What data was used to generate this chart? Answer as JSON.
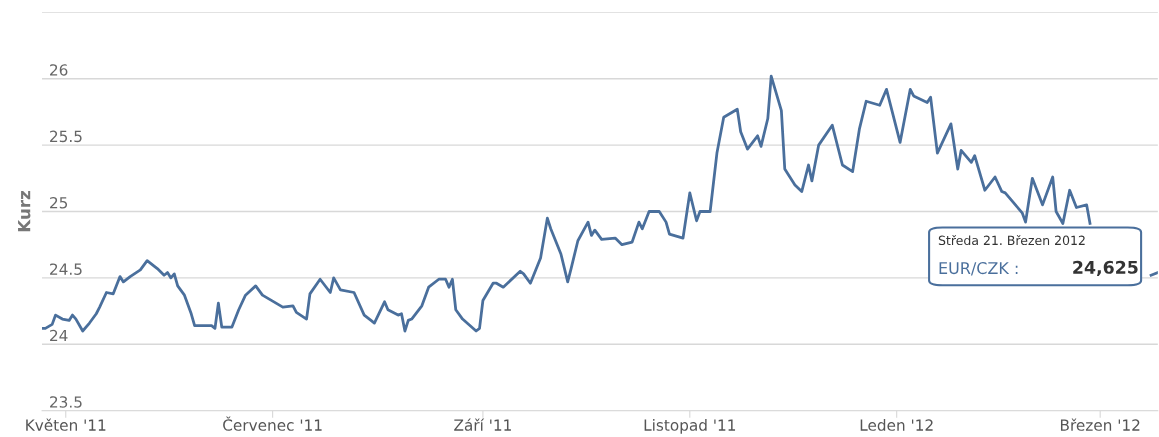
{
  "chart_data": {
    "type": "line",
    "ylabel": "Kurz",
    "annotations": [
      "Středa 21. Březen 2012",
      "EUR/CZK : 24,625"
    ],
    "xlim": [
      "2011-04-24",
      "2012-03-18"
    ],
    "xticks": [
      {
        "value": "2011-05-01",
        "label": "Květen '11"
      },
      {
        "value": "2011-07-01",
        "label": "Červenec '11"
      },
      {
        "value": "2011-09-01",
        "label": "Září '11"
      },
      {
        "value": "2011-11-01",
        "label": "Listopad '11"
      },
      {
        "value": "2012-01-01",
        "label": "Leden '12"
      },
      {
        "value": "2012-03-01",
        "label": "Březen '12"
      }
    ],
    "ylim": [
      23.5,
      26.5
    ],
    "yticks": [
      23.5,
      24,
      24.5,
      25,
      25.5,
      26,
      {
        "value": 26.5,
        "label": null
      }
    ],
    "grid": "y",
    "legend": false,
    "marker": "none",
    "line_style": "solid",
    "series": [
      {
        "color": "#4a6f9c",
        "x": [
          "2011-04-24",
          "2011-04-25",
          "2011-04-27",
          "2011-04-28",
          "2011-04-30",
          "2011-05-02",
          "2011-05-03",
          "2011-05-04",
          "2011-05-06",
          "2011-05-08",
          "2011-05-10",
          "2011-05-11",
          "2011-05-13",
          "2011-05-15",
          "2011-05-17",
          "2011-05-18",
          "2011-05-20",
          "2011-05-23",
          "2011-05-25",
          "2011-05-28",
          "2011-05-30",
          "2011-05-31",
          "2011-06-01",
          "2011-06-02",
          "2011-06-03",
          "2011-06-05",
          "2011-06-07",
          "2011-06-08",
          "2011-06-13",
          "2011-06-14",
          "2011-06-15",
          "2011-06-16",
          "2011-06-19",
          "2011-06-21",
          "2011-06-23",
          "2011-06-26",
          "2011-06-28",
          "2011-06-30",
          "2011-07-04",
          "2011-07-07",
          "2011-07-08",
          "2011-07-11",
          "2011-07-12",
          "2011-07-15",
          "2011-07-18",
          "2011-07-19",
          "2011-07-21",
          "2011-07-25",
          "2011-07-28",
          "2011-07-30",
          "2011-07-31",
          "2011-08-03",
          "2011-08-04",
          "2011-08-07",
          "2011-08-08",
          "2011-08-09",
          "2011-08-10",
          "2011-08-11",
          "2011-08-14",
          "2011-08-16",
          "2011-08-19",
          "2011-08-21",
          "2011-08-22",
          "2011-08-23",
          "2011-08-24",
          "2011-08-26",
          "2011-08-30",
          "2011-08-31",
          "2011-09-01",
          "2011-09-04",
          "2011-09-05",
          "2011-09-07",
          "2011-09-12",
          "2011-09-13",
          "2011-09-15",
          "2011-09-18",
          "2011-09-20",
          "2011-09-21",
          "2011-09-24",
          "2011-09-26",
          "2011-09-27",
          "2011-09-29",
          "2011-10-02",
          "2011-10-03",
          "2011-10-04",
          "2011-10-06",
          "2011-10-10",
          "2011-10-12",
          "2011-10-15",
          "2011-10-17",
          "2011-10-18",
          "2011-10-20",
          "2011-10-23",
          "2011-10-25",
          "2011-10-26",
          "2011-10-30",
          "2011-11-01",
          "2011-11-03",
          "2011-11-04",
          "2011-11-07",
          "2011-11-09",
          "2011-11-11",
          "2011-11-15",
          "2011-11-16",
          "2011-11-18",
          "2011-11-21",
          "2011-11-22",
          "2011-11-24",
          "2011-11-25",
          "2011-11-28",
          "2011-11-29",
          "2011-12-02",
          "2011-12-04",
          "2011-12-06",
          "2011-12-07",
          "2011-12-09",
          "2011-12-13",
          "2011-12-16",
          "2011-12-19",
          "2011-12-21",
          "2011-12-23",
          "2011-12-27",
          "2011-12-29",
          "2012-01-02",
          "2012-01-05",
          "2012-01-06",
          "2012-01-10",
          "2012-01-11",
          "2012-01-13",
          "2012-01-17",
          "2012-01-19",
          "2012-01-20",
          "2012-01-23",
          "2012-01-24",
          "2012-01-27",
          "2012-01-30",
          "2012-02-01",
          "2012-02-02",
          "2012-02-07",
          "2012-02-08",
          "2012-02-10",
          "2012-02-13",
          "2012-02-16",
          "2012-02-17",
          "2012-02-19",
          "2012-02-21",
          "2012-02-23",
          "2012-02-26",
          "2012-02-27",
          "2012-03-05",
          "2012-03-16",
          "2012-03-18"
        ],
        "values": [
          24.12,
          24.12,
          24.15,
          24.22,
          24.19,
          24.18,
          24.22,
          24.19,
          24.1,
          24.16,
          24.23,
          24.28,
          24.39,
          24.38,
          24.51,
          24.47,
          24.51,
          24.56,
          24.63,
          24.57,
          24.52,
          24.54,
          24.5,
          24.53,
          24.44,
          24.37,
          24.23,
          24.14,
          24.14,
          24.12,
          24.31,
          24.13,
          24.13,
          24.26,
          24.37,
          24.44,
          24.37,
          24.34,
          24.28,
          24.29,
          24.24,
          24.19,
          24.38,
          24.49,
          24.39,
          24.5,
          24.41,
          24.39,
          24.22,
          24.18,
          24.16,
          24.32,
          24.26,
          24.22,
          24.23,
          24.1,
          24.18,
          24.19,
          24.29,
          24.43,
          24.49,
          24.49,
          24.43,
          24.49,
          24.26,
          24.19,
          24.1,
          24.12,
          24.33,
          24.46,
          24.46,
          24.43,
          24.55,
          24.53,
          24.46,
          24.65,
          24.95,
          24.87,
          24.68,
          24.47,
          24.57,
          24.78,
          24.92,
          24.82,
          24.86,
          24.79,
          24.8,
          24.75,
          24.77,
          24.92,
          24.87,
          25.0,
          25.0,
          24.92,
          24.83,
          24.8,
          25.14,
          24.93,
          25.0,
          25.0,
          25.44,
          25.71,
          25.77,
          25.6,
          25.47,
          25.57,
          25.49,
          25.7,
          26.02,
          25.76,
          25.32,
          25.2,
          25.15,
          25.35,
          25.23,
          25.5,
          25.65,
          25.35,
          25.3,
          25.62,
          25.83,
          25.8,
          25.92,
          25.52,
          25.92,
          25.87,
          25.82,
          25.86,
          25.44,
          25.66,
          25.32,
          25.46,
          25.37,
          25.42,
          25.16,
          25.26,
          25.15,
          25.14,
          24.99,
          24.92,
          25.25,
          25.05,
          25.26,
          25.0,
          24.91,
          25.16,
          25.03,
          25.05,
          24.91,
          null,
          24.52,
          24.54
        ]
      }
    ]
  }
}
